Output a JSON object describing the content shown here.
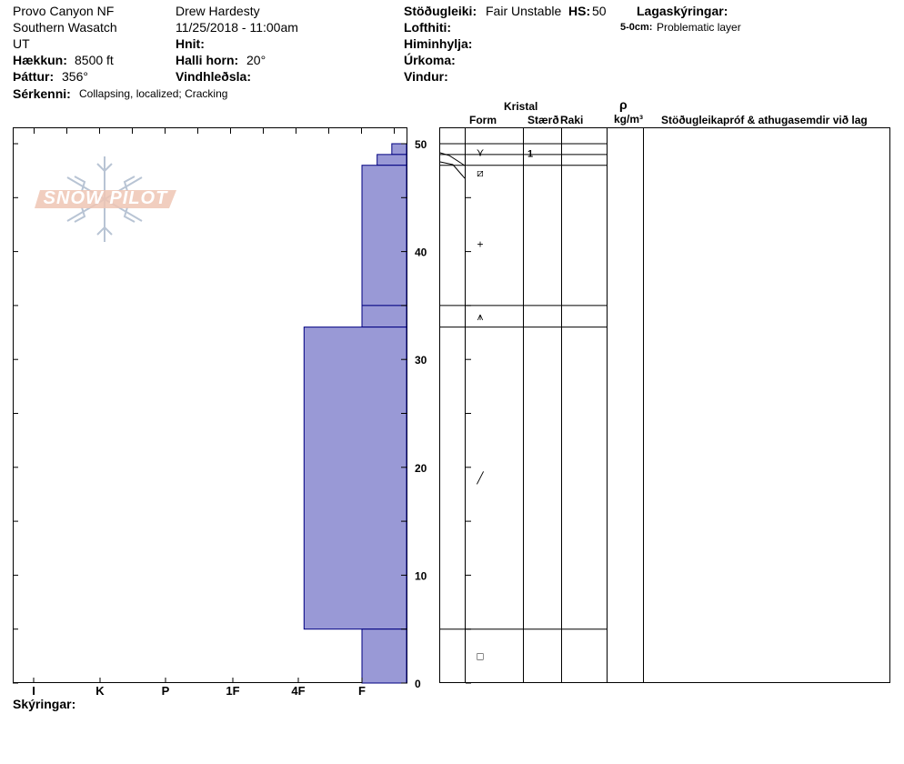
{
  "header": {
    "location": "Provo Canyon NF",
    "range": "Southern Wasatch",
    "state": "UT",
    "elevation_label": "Hækkun:",
    "elevation": "8500 ft",
    "aspect_label": "Þáttur:",
    "aspect": "356°",
    "features_label": "Sérkenni:",
    "features": "Collapsing, localized;  Cracking",
    "observer": "Drew Hardesty",
    "datetime": "11/25/2018 - 11:00am",
    "coords_label": "Hnit:",
    "slope_label": "Halli horn:",
    "slope": "20°",
    "wind_loading_label": "Vindhleðsla:",
    "stability_label": "Stöðugleiki:",
    "stability": "Fair Unstable",
    "hs_label": "HS:",
    "hs": "50",
    "air_temp_label": "Lofthiti:",
    "sky_label": "Himinhylja:",
    "precip_label": "Úrkoma:",
    "wind_label": "Vindur:",
    "legend_label": "Lagaskýringar:",
    "legend_entry_depth": "5-0cm:",
    "legend_entry_text": "Problematic layer"
  },
  "logo": {
    "text": "SNOW PILOT"
  },
  "table_headers": {
    "crystal": "Kristal",
    "form": "Form",
    "size": "Stærð",
    "moisture": "Raki",
    "rho": "ρ",
    "density_unit": "kg/m³",
    "tests": "Stöðugleikapróf & athugasemdir við lag"
  },
  "footer": {
    "comments_label": "Skýringar:"
  },
  "colors": {
    "hardness_fill": "#9999d6",
    "hardness_stroke": "#000080"
  },
  "chart_data": {
    "type": "bar",
    "orientation": "horizontal-profile",
    "xlabel": "",
    "ylabel": "",
    "y_ticks": [
      0,
      10,
      20,
      30,
      40,
      50
    ],
    "ylim": [
      0,
      50
    ],
    "hardness_ticks": [
      "I",
      "K",
      "P",
      "1F",
      "4F",
      "F"
    ],
    "layers": [
      {
        "top": 50,
        "bottom": 49,
        "hardness": "F-",
        "hardness_value": 0.33,
        "form": "Ʌ",
        "size": "1"
      },
      {
        "top": 49,
        "bottom": 48,
        "hardness": "F",
        "hardness_value": 0.66,
        "form": "",
        "size": ""
      },
      {
        "top": 48,
        "bottom": 35,
        "hardness": "4F-",
        "hardness_value": 1.0,
        "form": "+",
        "size": ""
      },
      {
        "top": 35,
        "bottom": 33,
        "hardness": "4F-",
        "hardness_value": 1.0,
        "form": "⊠",
        "size": ""
      },
      {
        "top": 33,
        "bottom": 5,
        "hardness": "1F+",
        "hardness_value": 2.3,
        "form": "╱",
        "size": ""
      },
      {
        "top": 5,
        "bottom": 0,
        "hardness": "4F-",
        "hardness_value": 1.0,
        "form": "□",
        "size": ""
      }
    ],
    "form_markers": [
      {
        "depth": 49.2,
        "symbol": "⋎"
      },
      {
        "depth": 47.3,
        "symbol": "⧄"
      },
      {
        "depth": 40.7,
        "symbol": "+"
      },
      {
        "depth": 34.0,
        "symbol": "⩚"
      },
      {
        "depth": 19.0,
        "symbol": "╱"
      },
      {
        "depth": 2.5,
        "symbol": "□"
      }
    ]
  }
}
